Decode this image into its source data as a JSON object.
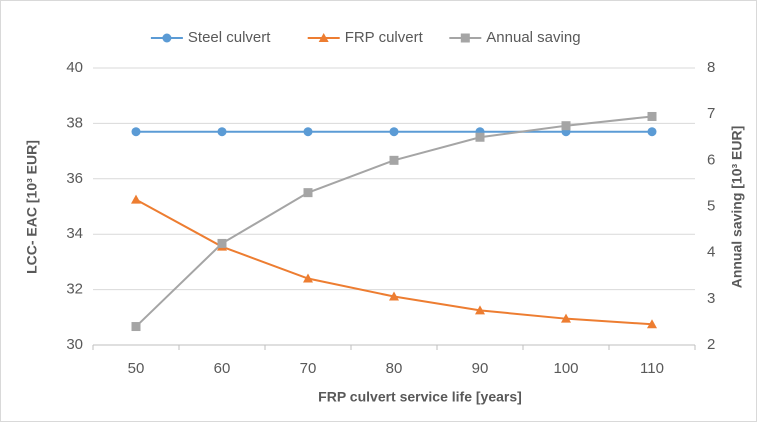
{
  "chart_data": {
    "type": "line",
    "categories": [
      "50",
      "60",
      "70",
      "80",
      "90",
      "100",
      "110"
    ],
    "series": [
      {
        "name": "Steel culvert",
        "color": "#5b9bd5",
        "marker": "circle",
        "values": [
          37.7,
          37.7,
          37.7,
          37.7,
          37.7,
          37.7,
          37.7
        ]
      },
      {
        "name": "FRP culvert",
        "color": "#ed7d31",
        "marker": "triangle",
        "values": [
          35.25,
          33.55,
          32.4,
          31.75,
          31.25,
          30.95,
          30.75
        ]
      },
      {
        "name": "Annual saving",
        "color": "#a5a5a5",
        "marker": "square",
        "axis": "y2",
        "values": [
          2.4,
          4.2,
          5.3,
          6.0,
          6.5,
          6.75,
          6.95
        ]
      }
    ],
    "ylabel": "LCC- EAC [10³ EUR]",
    "y2label": "Annual saving [10³ EUR]",
    "xlabel": "FRP culvert  service life [years]",
    "ylim": [
      30,
      40
    ],
    "yticks": [
      30,
      32,
      34,
      36,
      38,
      40
    ],
    "y2lim": [
      2,
      8
    ],
    "y2ticks": [
      2,
      3,
      4,
      5,
      6,
      7,
      8
    ],
    "grid": true,
    "legend": "top"
  }
}
